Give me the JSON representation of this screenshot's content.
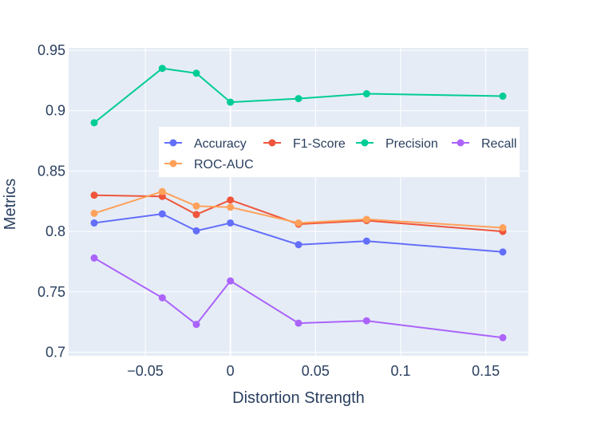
{
  "chart_data": {
    "type": "line",
    "title": "",
    "xlabel": "Distortion Strength",
    "ylabel": "Metrics",
    "x": [
      -0.08,
      -0.04,
      -0.02,
      0,
      0.04,
      0.08,
      0.16
    ],
    "xlim": [
      -0.095,
      0.175
    ],
    "ylim": [
      0.697,
      0.952
    ],
    "xticks": [
      -0.05,
      0,
      0.05,
      0.1,
      0.15
    ],
    "xtick_labels": [
      "−0.05",
      "0",
      "0.05",
      "0.1",
      "0.15"
    ],
    "yticks": [
      0.7,
      0.75,
      0.8,
      0.85,
      0.9,
      0.95
    ],
    "ytick_labels": [
      "0.7",
      "0.75",
      "0.8",
      "0.85",
      "0.9",
      "0.95"
    ],
    "grid": true,
    "legend_position": "upper-right inside",
    "series": [
      {
        "name": "Accuracy",
        "color": "#636efa",
        "values": [
          0.807,
          0.8145,
          0.8005,
          0.807,
          0.789,
          0.792,
          0.783
        ]
      },
      {
        "name": "F1-Score",
        "color": "#ef553b",
        "values": [
          0.83,
          0.829,
          0.814,
          0.826,
          0.806,
          0.809,
          0.8
        ]
      },
      {
        "name": "Precision",
        "color": "#00cc96",
        "values": [
          0.89,
          0.935,
          0.931,
          0.907,
          0.91,
          0.914,
          0.912
        ]
      },
      {
        "name": "Recall",
        "color": "#ab63fa",
        "values": [
          0.778,
          0.745,
          0.723,
          0.759,
          0.724,
          0.726,
          0.712
        ]
      },
      {
        "name": "ROC-AUC",
        "color": "#ffa15a",
        "values": [
          0.815,
          0.833,
          0.821,
          0.82,
          0.807,
          0.81,
          0.803
        ]
      }
    ]
  }
}
